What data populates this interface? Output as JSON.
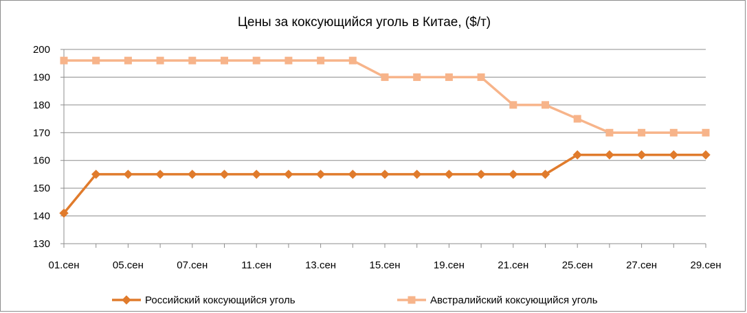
{
  "chart_data": {
    "type": "line",
    "title": "Цены за коксующийся уголь в Китае, ($/т)",
    "xlabel": "",
    "ylabel": "",
    "ylim": [
      130,
      200
    ],
    "yticks": [
      130,
      140,
      150,
      160,
      170,
      180,
      190,
      200
    ],
    "categories": [
      "01.сен",
      "",
      "05.сен",
      "",
      "07.сен",
      "",
      "11.сен",
      "",
      "13.сен",
      "",
      "15.сен",
      "",
      "19.сен",
      "",
      "21.сен",
      "",
      "25.сен",
      "",
      "27.сен",
      "",
      "29.сен"
    ],
    "x_tick_labels_shown": [
      "01.сен",
      "05.сен",
      "07.сен",
      "11.сен",
      "13.сен",
      "15.сен",
      "19.сен",
      "21.сен",
      "25.сен",
      "27.сен",
      "29.сен"
    ],
    "grid": "horizontal",
    "legend_position": "bottom",
    "series": [
      {
        "name": "Российский коксующийся уголь",
        "color": "#e07b2c",
        "marker": "diamond",
        "values": [
          141,
          155,
          155,
          155,
          155,
          155,
          155,
          155,
          155,
          155,
          155,
          155,
          155,
          155,
          155,
          155,
          162,
          162,
          162,
          162,
          162
        ]
      },
      {
        "name": "Австралийский коксующийся уголь",
        "color": "#f7b48a",
        "marker": "square",
        "values": [
          196,
          196,
          196,
          196,
          196,
          196,
          196,
          196,
          196,
          196,
          190,
          190,
          190,
          190,
          180,
          180,
          175,
          170,
          170,
          170,
          170
        ]
      }
    ]
  }
}
